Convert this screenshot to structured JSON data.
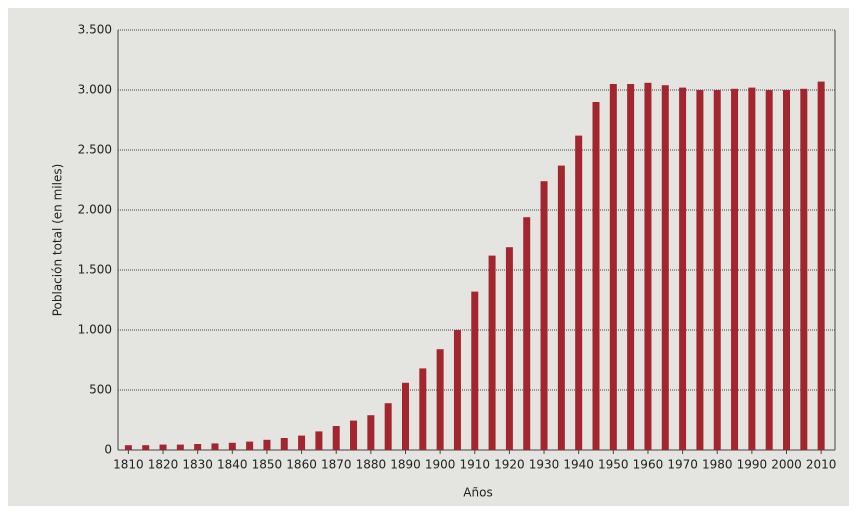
{
  "chart_data": {
    "type": "bar",
    "y_label": "Población total (en miles)",
    "x_label": "Años",
    "x": [
      1810,
      1815,
      1820,
      1825,
      1830,
      1835,
      1840,
      1845,
      1850,
      1855,
      1860,
      1865,
      1870,
      1875,
      1880,
      1885,
      1890,
      1895,
      1900,
      1905,
      1910,
      1915,
      1920,
      1925,
      1930,
      1935,
      1940,
      1945,
      1950,
      1955,
      1960,
      1965,
      1970,
      1975,
      1980,
      1985,
      1990,
      1995,
      2000,
      2005,
      2010
    ],
    "values": [
      40,
      40,
      45,
      45,
      50,
      55,
      60,
      70,
      85,
      100,
      120,
      155,
      200,
      245,
      290,
      390,
      560,
      680,
      840,
      1000,
      1320,
      1620,
      1690,
      1940,
      2240,
      2370,
      2620,
      2900,
      3050,
      3050,
      3060,
      3040,
      3020,
      3000,
      3000,
      3010,
      3020,
      3000,
      3000,
      3010,
      3070
    ],
    "color": "#a3262f",
    "xlim": [
      1807,
      2014
    ],
    "xticks": [
      1810,
      1820,
      1830,
      1840,
      1850,
      1860,
      1870,
      1880,
      1890,
      1900,
      1910,
      1920,
      1930,
      1940,
      1950,
      1960,
      1970,
      1980,
      1990,
      2000,
      2010
    ],
    "ylim": [
      0,
      3500
    ],
    "yticks": [
      0,
      500,
      {
        "value": 1000,
        "label": "1.000"
      },
      {
        "value": 1500,
        "label": "1.500"
      },
      {
        "value": 2000,
        "label": "2.000"
      },
      {
        "value": 2500,
        "label": "2.500"
      },
      {
        "value": 3000,
        "label": "3.000"
      },
      {
        "value": 3500,
        "label": "3.500"
      }
    ],
    "grid": true
  }
}
